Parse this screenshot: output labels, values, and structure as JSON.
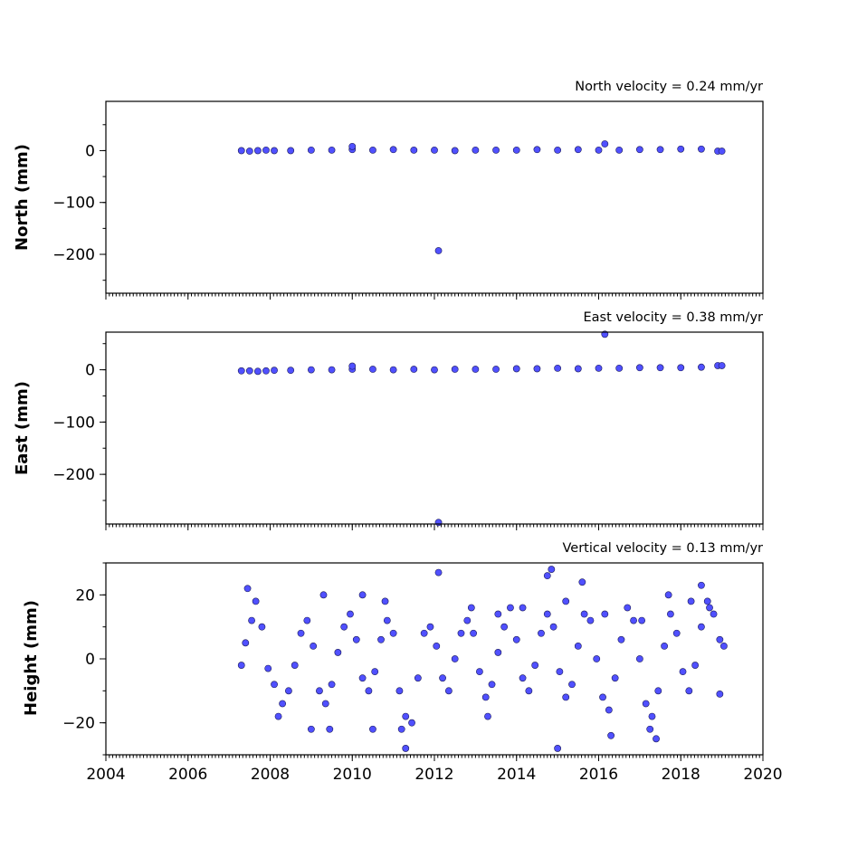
{
  "chart_data": [
    {
      "type": "scatter",
      "panel": "north",
      "title": "North velocity = 0.24 mm/yr",
      "ylabel": "North (mm)",
      "xlim": [
        2004,
        2020
      ],
      "ylim": [
        -275,
        95
      ],
      "yticks": [
        0,
        -100,
        -200
      ],
      "ytick_labels": [
        "0",
        "−100",
        "−200"
      ],
      "xticks": [
        2004,
        2006,
        2008,
        2010,
        2012,
        2014,
        2016,
        2018,
        2020
      ],
      "xtick_labels": [],
      "marker_color": "#5050ff",
      "edge_color": "#1a1a5a",
      "series": [
        {
          "x": [
            2007.3,
            2007.5,
            2007.7,
            2007.9,
            2008.1,
            2008.5,
            2009.0,
            2009.5,
            2010.0,
            2010.5,
            2011.0,
            2011.5,
            2012.0,
            2012.5,
            2013.0,
            2013.5,
            2014.0,
            2014.5,
            2015.0,
            2015.5,
            2016.0,
            2016.5,
            2017.0,
            2017.5,
            2018.0,
            2018.5,
            2018.9,
            2019.0,
            2010.0,
            2016.15,
            2012.1
          ],
          "y": [
            0,
            -1,
            0,
            1,
            0,
            0,
            1,
            1,
            2,
            1,
            2,
            1,
            1,
            0,
            1,
            1,
            1,
            2,
            1,
            2,
            1,
            1,
            2,
            2,
            3,
            3,
            -1,
            -1,
            8,
            13,
            -193
          ]
        }
      ]
    },
    {
      "type": "scatter",
      "panel": "east",
      "title": "East velocity = 0.38 mm/yr",
      "ylabel": "East (mm)",
      "xlim": [
        2004,
        2020
      ],
      "ylim": [
        -295,
        72
      ],
      "yticks": [
        0,
        -100,
        -200
      ],
      "ytick_labels": [
        "0",
        "−100",
        "−200"
      ],
      "xticks": [
        2004,
        2006,
        2008,
        2010,
        2012,
        2014,
        2016,
        2018,
        2020
      ],
      "xtick_labels": [],
      "marker_color": "#5050ff",
      "edge_color": "#1a1a5a",
      "series": [
        {
          "x": [
            2007.3,
            2007.5,
            2007.7,
            2007.9,
            2008.1,
            2008.5,
            2009.0,
            2009.5,
            2010.0,
            2010.5,
            2011.0,
            2011.5,
            2012.0,
            2012.5,
            2013.0,
            2013.5,
            2014.0,
            2014.5,
            2015.0,
            2015.5,
            2016.0,
            2016.5,
            2017.0,
            2017.5,
            2018.0,
            2018.5,
            2018.9,
            2019.0,
            2010.0,
            2016.15,
            2012.1
          ],
          "y": [
            -2,
            -2,
            -3,
            -2,
            -1,
            -1,
            0,
            0,
            1,
            1,
            0,
            1,
            0,
            1,
            1,
            1,
            2,
            2,
            3,
            2,
            3,
            3,
            4,
            4,
            4,
            5,
            8,
            8,
            7,
            68,
            -292
          ]
        }
      ]
    },
    {
      "type": "scatter",
      "panel": "height",
      "title": "Vertical velocity = 0.13 mm/yr",
      "ylabel": "Height (mm)",
      "xlim": [
        2004,
        2020
      ],
      "ylim": [
        -30,
        30
      ],
      "yticks": [
        20,
        0,
        -20
      ],
      "ytick_labels": [
        "20",
        "0",
        "−20"
      ],
      "xticks": [
        2004,
        2006,
        2008,
        2010,
        2012,
        2014,
        2016,
        2018,
        2020
      ],
      "xtick_labels": [
        "2004",
        "2006",
        "2008",
        "2010",
        "2012",
        "2014",
        "2016",
        "2018",
        "2020"
      ],
      "marker_color": "#5050ff",
      "edge_color": "#1a1a5a",
      "series": [
        {
          "x": [
            2007.3,
            2007.4,
            2007.55,
            2007.65,
            2007.8,
            2007.95,
            2008.1,
            2008.3,
            2008.45,
            2008.6,
            2008.75,
            2008.9,
            2009.05,
            2009.2,
            2009.35,
            2009.5,
            2009.65,
            2009.8,
            2009.95,
            2010.1,
            2010.25,
            2010.4,
            2010.55,
            2010.7,
            2010.85,
            2011.0,
            2011.15,
            2011.3,
            2011.45,
            2011.6,
            2011.75,
            2011.9,
            2012.05,
            2012.2,
            2012.35,
            2012.5,
            2012.65,
            2012.8,
            2012.95,
            2013.1,
            2013.25,
            2013.4,
            2013.55,
            2013.7,
            2013.85,
            2014.0,
            2014.15,
            2014.3,
            2014.45,
            2014.6,
            2014.75,
            2014.9,
            2015.05,
            2015.2,
            2015.35,
            2015.5,
            2015.65,
            2015.8,
            2015.95,
            2016.1,
            2016.25,
            2016.4,
            2016.55,
            2016.7,
            2016.85,
            2017.0,
            2017.15,
            2017.3,
            2017.45,
            2017.6,
            2017.75,
            2017.9,
            2018.05,
            2018.2,
            2018.35,
            2018.5,
            2018.65,
            2018.8,
            2018.95,
            2019.05,
            2007.45,
            2008.2,
            2009.3,
            2009.45,
            2010.25,
            2010.5,
            2010.8,
            2011.2,
            2011.3,
            2012.1,
            2012.9,
            2013.3,
            2013.55,
            2014.15,
            2014.75,
            2014.85,
            2015.0,
            2015.2,
            2015.6,
            2016.15,
            2016.3,
            2017.05,
            2017.25,
            2017.4,
            2017.7,
            2018.25,
            2018.5,
            2018.7,
            2009.0,
            2018.95
          ],
          "y": [
            -2,
            5,
            12,
            18,
            10,
            -3,
            -8,
            -14,
            -10,
            -2,
            8,
            12,
            4,
            -10,
            -14,
            -8,
            2,
            10,
            14,
            6,
            -6,
            -10,
            -4,
            6,
            12,
            8,
            -10,
            -18,
            -20,
            -6,
            8,
            10,
            4,
            -6,
            -10,
            0,
            8,
            12,
            8,
            -4,
            -12,
            -8,
            2,
            10,
            16,
            6,
            -6,
            -10,
            -2,
            8,
            14,
            10,
            -4,
            -12,
            -8,
            4,
            14,
            12,
            0,
            -12,
            -16,
            -6,
            6,
            16,
            12,
            0,
            -14,
            -18,
            -10,
            4,
            14,
            8,
            -4,
            -10,
            -2,
            10,
            18,
            14,
            6,
            4,
            22,
            -18,
            20,
            -22,
            20,
            -22,
            18,
            -22,
            -28,
            27,
            16,
            -18,
            14,
            16,
            26,
            28,
            -28,
            18,
            24,
            14,
            -24,
            12,
            -22,
            -25,
            20,
            18,
            23,
            16,
            -22,
            -11
          ]
        }
      ]
    }
  ]
}
